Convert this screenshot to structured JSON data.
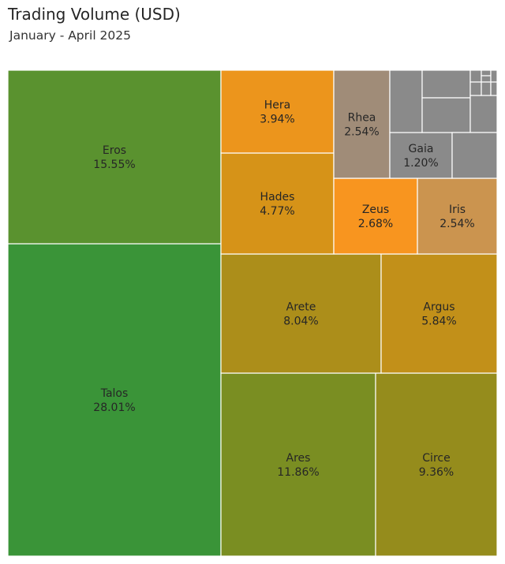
{
  "chart_data": {
    "type": "treemap",
    "title": "Trading Volume (USD)",
    "subtitle": "January - April 2025",
    "items": [
      {
        "name": "Talos",
        "label": "28.01%",
        "value": 28.01,
        "color": "#3a9438",
        "labeled": true
      },
      {
        "name": "Eros",
        "label": "15.55%",
        "value": 15.55,
        "color": "#5a922f",
        "labeled": true
      },
      {
        "name": "Ares",
        "label": "11.86%",
        "value": 11.86,
        "color": "#7a8e22",
        "labeled": true
      },
      {
        "name": "Circe",
        "label": "9.36%",
        "value": 9.36,
        "color": "#958c1c",
        "labeled": true
      },
      {
        "name": "Arete",
        "label": "8.04%",
        "value": 8.04,
        "color": "#ac8e1a",
        "labeled": true
      },
      {
        "name": "Argus",
        "label": "5.84%",
        "value": 5.84,
        "color": "#c29019",
        "labeled": true
      },
      {
        "name": "Hades",
        "label": "4.77%",
        "value": 4.77,
        "color": "#d69318",
        "labeled": true
      },
      {
        "name": "Hera",
        "label": "3.94%",
        "value": 3.94,
        "color": "#ec951c",
        "labeled": true
      },
      {
        "name": "Zeus",
        "label": "2.68%",
        "value": 2.68,
        "color": "#f8951f",
        "labeled": true
      },
      {
        "name": "Iris",
        "label": "2.54%",
        "value": 2.54,
        "color": "#cb944f",
        "labeled": true
      },
      {
        "name": "Rhea",
        "label": "2.54%",
        "value": 2.54,
        "color": "#a08c78",
        "labeled": true
      },
      {
        "name": "Gaia",
        "label": "1.20%",
        "value": 1.2,
        "color": "#8a8a8a",
        "labeled": true
      }
    ],
    "unlabeled_tiles": {
      "count": 12,
      "color": "#8a8a8a"
    }
  }
}
